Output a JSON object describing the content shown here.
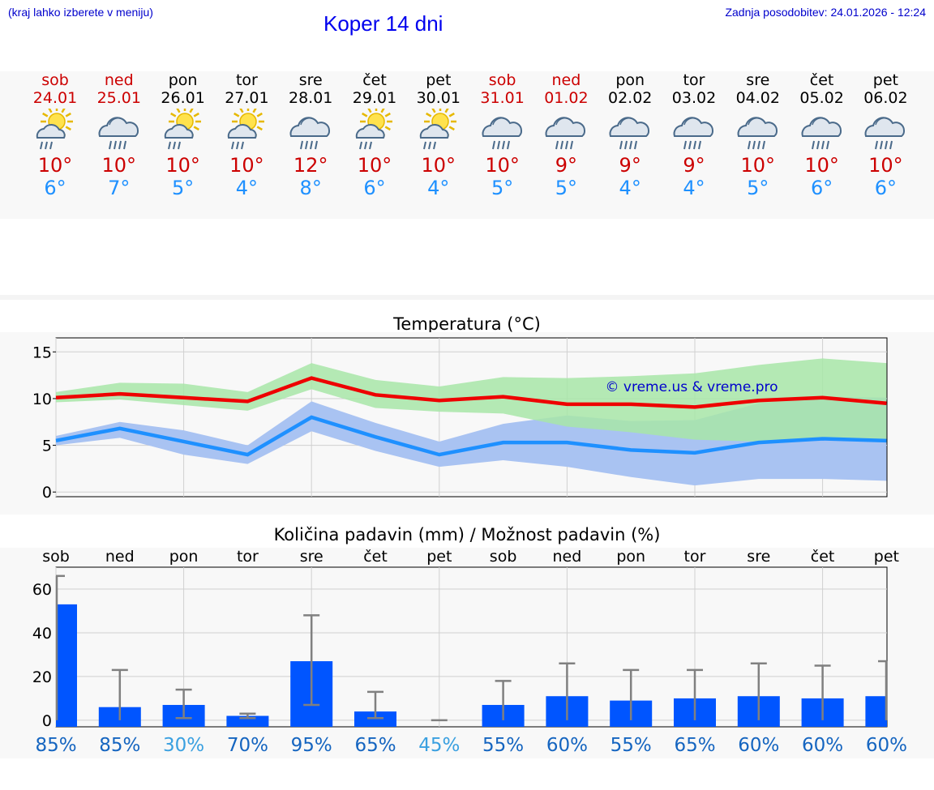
{
  "header": {
    "hint": "(kraj lahko izberete v meniju)",
    "title": "Koper 14 dni",
    "updated": "Zadnja posodobitev: 24.01.2026 - 12:24"
  },
  "days": [
    {
      "name": "sob",
      "date": "24.01",
      "weekend": true,
      "icon": "partly-sunny-rain-icon",
      "sun": true,
      "tmax": "10°",
      "tmin": "6°"
    },
    {
      "name": "ned",
      "date": "25.01",
      "weekend": true,
      "icon": "cloud-light-rain-icon",
      "sun": false,
      "tmax": "10°",
      "tmin": "7°"
    },
    {
      "name": "pon",
      "date": "26.01",
      "weekend": false,
      "icon": "partly-sunny-rain-icon",
      "sun": true,
      "tmax": "10°",
      "tmin": "5°"
    },
    {
      "name": "tor",
      "date": "27.01",
      "weekend": false,
      "icon": "partly-sunny-rain-icon",
      "sun": true,
      "tmax": "10°",
      "tmin": "4°"
    },
    {
      "name": "sre",
      "date": "28.01",
      "weekend": false,
      "icon": "cloud-rain-icon",
      "sun": false,
      "tmax": "12°",
      "tmin": "8°"
    },
    {
      "name": "čet",
      "date": "29.01",
      "weekend": false,
      "icon": "partly-sunny-rain-icon",
      "sun": true,
      "tmax": "10°",
      "tmin": "6°"
    },
    {
      "name": "pet",
      "date": "30.01",
      "weekend": false,
      "icon": "partly-sunny-icon",
      "sun": true,
      "tmax": "10°",
      "tmin": "4°"
    },
    {
      "name": "sob",
      "date": "31.01",
      "weekend": true,
      "icon": "cloud-rain-icon",
      "sun": false,
      "tmax": "10°",
      "tmin": "5°"
    },
    {
      "name": "ned",
      "date": "01.02",
      "weekend": true,
      "icon": "cloud-rain-icon",
      "sun": false,
      "tmax": "9°",
      "tmin": "5°"
    },
    {
      "name": "pon",
      "date": "02.02",
      "weekend": false,
      "icon": "cloud-rain-icon",
      "sun": false,
      "tmax": "9°",
      "tmin": "4°"
    },
    {
      "name": "tor",
      "date": "03.02",
      "weekend": false,
      "icon": "cloud-rain-icon",
      "sun": false,
      "tmax": "9°",
      "tmin": "4°"
    },
    {
      "name": "sre",
      "date": "04.02",
      "weekend": false,
      "icon": "cloud-rain-icon",
      "sun": false,
      "tmax": "10°",
      "tmin": "5°"
    },
    {
      "name": "čet",
      "date": "05.02",
      "weekend": false,
      "icon": "cloud-rain-icon",
      "sun": false,
      "tmax": "10°",
      "tmin": "6°"
    },
    {
      "name": "pet",
      "date": "06.02",
      "weekend": false,
      "icon": "cloud-rain-icon",
      "sun": false,
      "tmax": "10°",
      "tmin": "6°"
    }
  ],
  "colors": {
    "max_line": "#ee0000",
    "min_line": "#1e90ff",
    "max_band": "#a8e6a8",
    "min_band": "#a9c3f2",
    "overlap": "#7ec2a4",
    "bar": "#0055ff",
    "whisker": "#808080",
    "pct_dark": "#1565c0",
    "pct_light": "#3aa0e0"
  },
  "chart_data": [
    {
      "type": "line",
      "title": "Temperatura (°C)",
      "watermark": "© vreme.us & vreme.pro",
      "x": [
        0,
        1,
        2,
        3,
        4,
        5,
        6,
        7,
        8,
        9,
        10,
        11,
        12,
        13
      ],
      "ylim": [
        -0.5,
        16.5
      ],
      "yticks": [
        "0",
        "5",
        "10",
        "15"
      ],
      "series": [
        {
          "name": "max",
          "values": [
            10.1,
            10.5,
            10.1,
            9.7,
            12.2,
            10.4,
            9.8,
            10.2,
            9.4,
            9.4,
            9.1,
            9.8,
            10.1,
            9.5
          ],
          "band_low": [
            9.6,
            9.9,
            9.3,
            8.7,
            11.0,
            9.0,
            8.6,
            8.4,
            7.0,
            6.4,
            5.6,
            5.4,
            5.6,
            5.4
          ],
          "band_high": [
            10.7,
            11.7,
            11.6,
            10.7,
            13.8,
            12.0,
            11.3,
            12.3,
            12.2,
            12.4,
            12.7,
            13.6,
            14.3,
            13.8
          ]
        },
        {
          "name": "min",
          "values": [
            5.5,
            6.8,
            5.4,
            4.0,
            8.0,
            5.9,
            4.0,
            5.3,
            5.3,
            4.5,
            4.2,
            5.3,
            5.7,
            5.5
          ],
          "band_low": [
            5.0,
            5.8,
            4.0,
            3.0,
            6.5,
            4.4,
            2.7,
            3.4,
            2.7,
            1.6,
            0.7,
            1.4,
            1.4,
            1.2
          ],
          "band_high": [
            6.0,
            7.5,
            6.6,
            5.0,
            9.7,
            7.4,
            5.4,
            7.3,
            8.2,
            7.6,
            7.7,
            9.5,
            10.2,
            10.1
          ]
        }
      ]
    },
    {
      "type": "bar",
      "title": "Količina padavin (mm) / Možnost padavin (%)",
      "categories": [
        "sob",
        "ned",
        "pon",
        "tor",
        "sre",
        "čet",
        "pet",
        "sob",
        "ned",
        "pon",
        "tor",
        "sre",
        "čet",
        "pet"
      ],
      "values": [
        53,
        6,
        7,
        2,
        27,
        4,
        0,
        7,
        11,
        9,
        10,
        11,
        10,
        11
      ],
      "error_low": [
        0,
        0,
        1,
        1,
        7,
        1,
        0,
        0,
        0,
        0,
        0,
        0,
        0,
        0
      ],
      "error_high": [
        66,
        23,
        14,
        3,
        48,
        13,
        0,
        18,
        26,
        23,
        23,
        26,
        25,
        27
      ],
      "ylim": [
        -3,
        70
      ],
      "yticks": [
        "0",
        "20",
        "40",
        "60"
      ],
      "probability": [
        "85%",
        "85%",
        "30%",
        "70%",
        "95%",
        "65%",
        "45%",
        "55%",
        "60%",
        "55%",
        "65%",
        "60%",
        "60%",
        "60%"
      ],
      "probability_low": [
        false,
        false,
        true,
        false,
        false,
        false,
        true,
        false,
        false,
        false,
        false,
        false,
        false,
        false
      ]
    }
  ]
}
